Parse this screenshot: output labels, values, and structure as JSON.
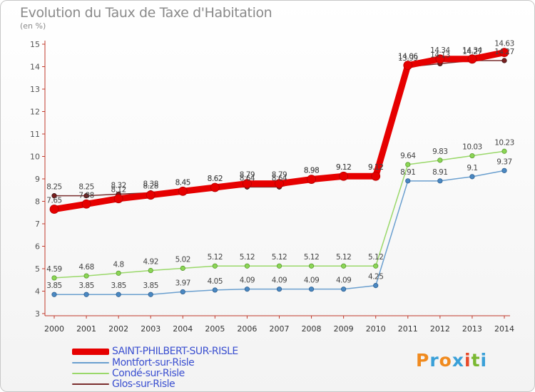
{
  "header": {
    "title": "Evolution du Taux de Taxe d'Habitation",
    "subtitle": "(en %)"
  },
  "chart_data": {
    "type": "line",
    "title": "Evolution du Taux de Taxe d'Habitation",
    "ylabel": "(en %)",
    "xlabel": "",
    "x": [
      "2000",
      "2001",
      "2002",
      "2003",
      "2004",
      "2005",
      "2006",
      "2007",
      "2008",
      "2009",
      "2010",
      "2011",
      "2012",
      "2013",
      "2014"
    ],
    "ylim": [
      3,
      15
    ],
    "yticks": [
      "3",
      "4",
      "5",
      "6",
      "7",
      "8",
      "9",
      "10",
      "11",
      "12",
      "13",
      "14",
      "15"
    ],
    "grid": false,
    "legend_position": "bottom-left",
    "series": [
      {
        "name": "SAINT-PHILBERT-SUR-RISLE",
        "color": "#e60000",
        "values": [
          7.65,
          7.88,
          8.12,
          8.28,
          8.45,
          8.62,
          8.79,
          8.79,
          8.98,
          9.12,
          9.12,
          14.06,
          14.34,
          14.34,
          14.63
        ],
        "labels": [
          "7.65",
          "7.88",
          "8.12",
          "8.28",
          "8.45",
          "8.62",
          "8.79",
          "8.79",
          "8.98",
          "9.12",
          "9.12",
          "14.06",
          "14.34",
          "14.34",
          "14.63"
        ]
      },
      {
        "name": "Montfort-sur-Risle",
        "color": "#6a9fcf",
        "values": [
          3.85,
          3.85,
          3.85,
          3.85,
          3.97,
          4.05,
          4.09,
          4.09,
          4.09,
          4.09,
          4.25,
          8.91,
          8.91,
          9.1,
          9.37
        ],
        "labels": [
          "3.85",
          "3.85",
          "3.85",
          "3.85",
          "3.97",
          "4.05",
          "4.09",
          "4.09",
          "4.09",
          "4.09",
          "4.25",
          "8.91",
          "8.91",
          "9.1",
          "9.37"
        ]
      },
      {
        "name": "Condé-sur-Risle",
        "color": "#9ad86a",
        "values": [
          4.59,
          4.68,
          4.8,
          4.92,
          5.02,
          5.12,
          5.12,
          5.12,
          5.12,
          5.12,
          5.12,
          9.64,
          9.83,
          10.03,
          10.23
        ],
        "labels": [
          "4.59",
          "4.68",
          "4.8",
          "4.92",
          "5.02",
          "5.12",
          "5.12",
          "5.12",
          "5.12",
          "5.12",
          "5.12",
          "9.64",
          "9.83",
          "10.03",
          "10.23"
        ]
      },
      {
        "name": "Glos-sur-Risle",
        "color": "#7a2e2e",
        "values": [
          8.25,
          8.25,
          8.32,
          8.38,
          8.45,
          8.62,
          8.64,
          8.64,
          8.98,
          9.12,
          9.12,
          13.99,
          14.13,
          14.27,
          14.27
        ],
        "labels": [
          "8.25",
          "8.25",
          "8.32",
          "8.38",
          "8.45",
          "8.62",
          "8.64",
          "8.64",
          "8.98",
          "9.12",
          "9.12",
          "13.99",
          "14.13",
          "14.27",
          "14.27"
        ]
      }
    ]
  },
  "legend": {
    "items": [
      {
        "label": "SAINT-PHILBERT-SUR-RISLE",
        "color": "#e60000",
        "text_color": "#3a4fd0"
      },
      {
        "label": "Montfort-sur-Risle",
        "color": "#6a9fcf",
        "text_color": "#3a4fd0"
      },
      {
        "label": "Condé-sur-Risle",
        "color": "#9ad86a",
        "text_color": "#3a4fd0"
      },
      {
        "label": "Glos-sur-Risle",
        "color": "#7a2e2e",
        "text_color": "#3a4fd0"
      }
    ]
  },
  "logo": {
    "text": "Proxiti",
    "colors": [
      "#f08a1e",
      "#3aa0d8",
      "#f08a1e",
      "#3aa0d8",
      "#e84a2a",
      "#7ab832",
      "#3aa0d8"
    ]
  }
}
